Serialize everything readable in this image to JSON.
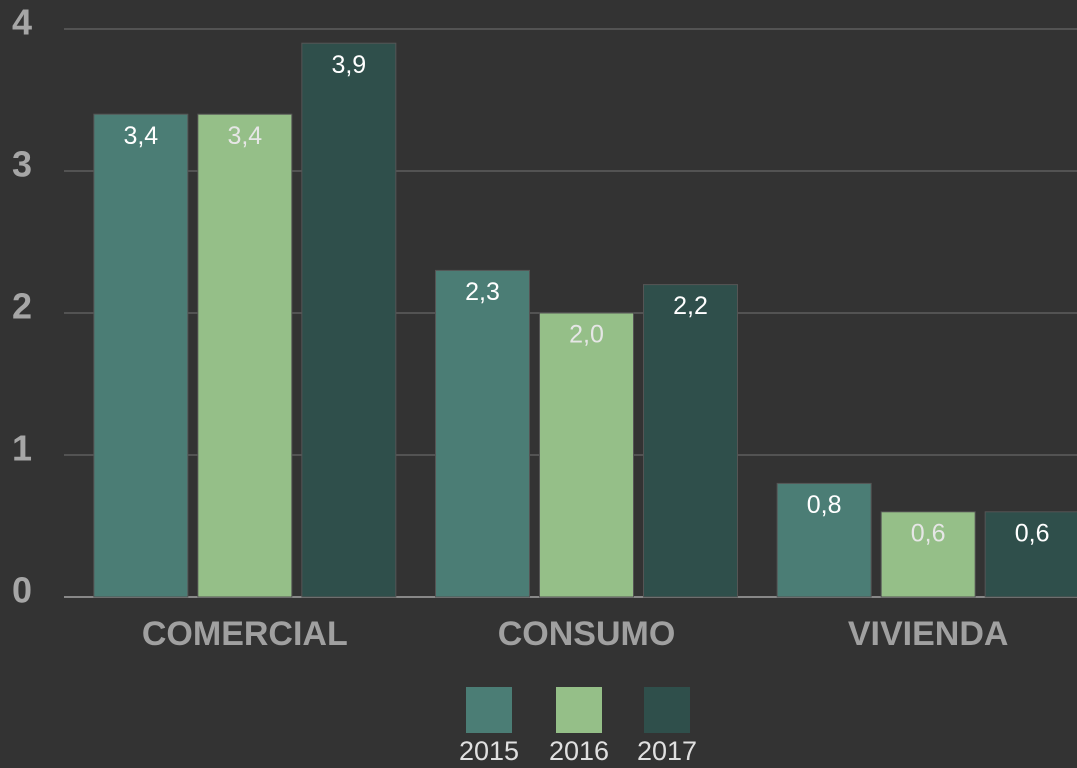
{
  "chart_data": {
    "type": "bar",
    "categories": [
      "COMERCIAL",
      "CONSUMO",
      "VIVIENDA"
    ],
    "series": [
      {
        "name": "2015",
        "color": "#4b7d75",
        "values": [
          3.4,
          2.3,
          0.8
        ],
        "value_labels": [
          "3,4",
          "2,3",
          "0,8"
        ]
      },
      {
        "name": "2016",
        "color": "#95bf88",
        "values": [
          3.4,
          2.0,
          0.6
        ],
        "value_labels": [
          "3,4",
          "2,0",
          "0,6"
        ]
      },
      {
        "name": "2017",
        "color": "#2f4f4b",
        "values": [
          3.9,
          2.2,
          0.6
        ],
        "value_labels": [
          "3,9",
          "2,2",
          "0,6"
        ]
      }
    ],
    "ylim": [
      0,
      4
    ],
    "yticks": [
      0,
      1,
      2,
      3,
      4
    ],
    "grid": true,
    "legend": "bottom"
  }
}
